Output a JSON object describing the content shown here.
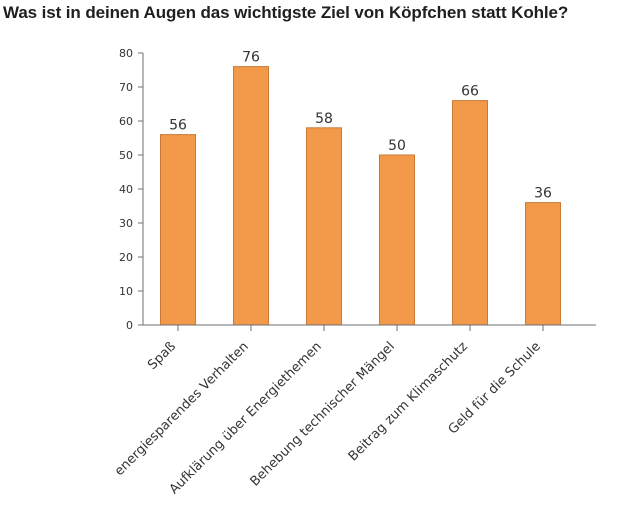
{
  "chart_data": {
    "type": "bar",
    "title": "Was ist in deinen Augen das wichtigste Ziel von Köpfchen statt Kohle?",
    "categories": [
      "Spaß",
      "energiesparendes Verhalten",
      "Aufklärung über Energiethemen",
      "Behebung technischer Mängel",
      "Beitrag zum Klimaschutz",
      "Geld für die Schule"
    ],
    "values": [
      56,
      76,
      58,
      50,
      66,
      36
    ],
    "ylim": [
      0,
      80
    ],
    "yticks": [
      0,
      10,
      20,
      30,
      40,
      50,
      60,
      70,
      80
    ],
    "grid": false,
    "bar_color": "#f29a4a",
    "bar_edge_color": "#c97a35",
    "axis_color": "#6f6f6f"
  }
}
